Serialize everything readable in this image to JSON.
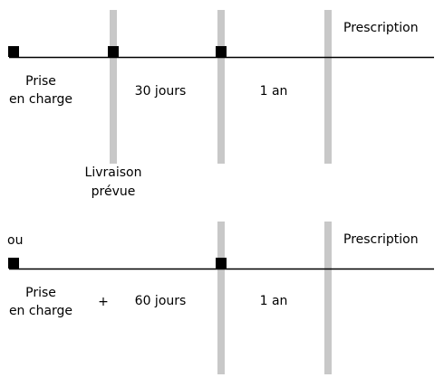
{
  "colors": {
    "background": "#ffffff",
    "timeline": "#000000",
    "marker": "#000000",
    "separator": "#c8c8c8",
    "text": "#000000"
  },
  "top": {
    "start_line1": "Prise",
    "start_line2": "en charge",
    "delivery_line1": "Livraison",
    "delivery_line2": "prévue",
    "period1": "30 jours",
    "period2": "1 an",
    "end": "Prescription"
  },
  "bottom": {
    "alt": "ou",
    "start_line1": "Prise",
    "start_line2": "en charge",
    "plus": "+",
    "period1": "60 jours",
    "period2": "1 an",
    "end": "Prescription"
  }
}
